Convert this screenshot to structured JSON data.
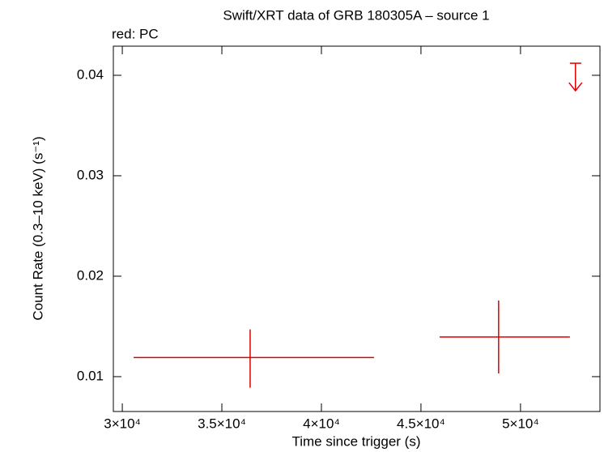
{
  "chart_data": {
    "type": "scatter",
    "title": "Swift/XRT data of GRB 180305A – source 1",
    "subtitle": "red: PC",
    "xlabel": "Time since trigger (s)",
    "ylabel": "Count Rate (0.3–10 keV) (s⁻¹)",
    "xlim": [
      29550,
      53990
    ],
    "ylim": [
      0.00653,
      0.0429
    ],
    "xticks": [
      {
        "value": 30000,
        "label": "3×10⁴"
      },
      {
        "value": 35000,
        "label": "3.5×10⁴"
      },
      {
        "value": 40000,
        "label": "4×10⁴"
      },
      {
        "value": 45000,
        "label": "4.5×10⁴"
      },
      {
        "value": 50000,
        "label": "5×10⁴"
      }
    ],
    "yticks": [
      0.01,
      0.02,
      0.03,
      0.04
    ],
    "color": "#e00000",
    "series": [
      {
        "x": [
          36420,
          48900
        ],
        "values": [
          0.0119,
          0.01395
        ],
        "x_err_low": [
          5850,
          2965
        ],
        "x_err_high": [
          6220,
          3580
        ],
        "y_err_low": [
          0.003,
          0.00363
        ],
        "y_err_high": [
          0.0028,
          0.00363
        ]
      }
    ],
    "upper_limits": {
      "x": [
        52760
      ],
      "values": [
        0.0412
      ],
      "x_err_low": [
        280
      ],
      "x_err_high": [
        290
      ]
    }
  }
}
